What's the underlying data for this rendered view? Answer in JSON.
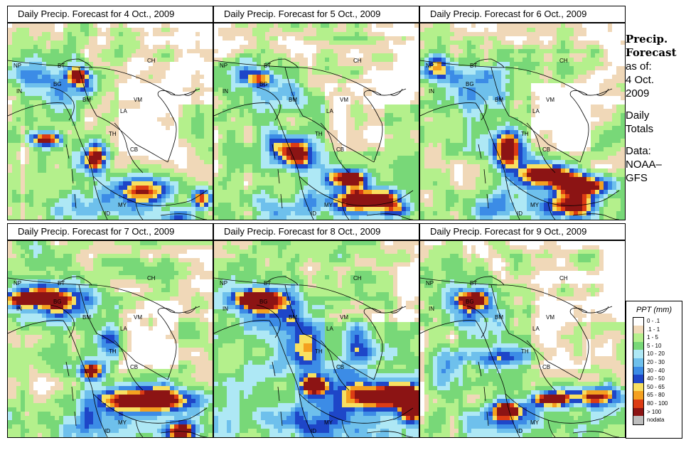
{
  "panels": [
    {
      "title": "Daily Precip. Forecast for  4 Oct., 2009",
      "scene": 0
    },
    {
      "title": "Daily Precip. Forecast for  5 Oct., 2009",
      "scene": 1
    },
    {
      "title": "Daily Precip. Forecast for  6 Oct., 2009",
      "scene": 2
    },
    {
      "title": "Daily Precip. Forecast for  7 Oct., 2009",
      "scene": 3
    },
    {
      "title": "Daily Precip. Forecast for  8 Oct., 2009",
      "scene": 4
    },
    {
      "title": "Daily Precip. Forecast for  9 Oct., 2009",
      "scene": 5
    }
  ],
  "map_labels": [
    "NP",
    "BT",
    "IN",
    "BG",
    "BM",
    "CH",
    "VM",
    "LA",
    "TH",
    "CB",
    "MY",
    "ID"
  ],
  "side": {
    "title1": "Precip.",
    "title2": "Forecast",
    "asof": "as of:",
    "date1": "4 Oct.",
    "date2": "2009",
    "daily1": "Daily",
    "daily2": "Totals",
    "data1": "Data:",
    "data2": "NOAA–",
    "data3": "GFS"
  },
  "legend": {
    "title": "PPT (mm)",
    "items": [
      {
        "label": "0 - .1",
        "color": "#ffffff"
      },
      {
        "label": ".1 - 1",
        "color": "#f0d8b8"
      },
      {
        "label": "1 - 5",
        "color": "#b4f08c"
      },
      {
        "label": "5 - 10",
        "color": "#78d878"
      },
      {
        "label": "10 - 20",
        "color": "#aee8f5"
      },
      {
        "label": "20 - 30",
        "color": "#6ec0ec"
      },
      {
        "label": "30 - 40",
        "color": "#3c8ce6"
      },
      {
        "label": "40 - 50",
        "color": "#1e46c8"
      },
      {
        "label": "50 - 65",
        "color": "#f8e060"
      },
      {
        "label": "65 - 80",
        "color": "#f4a020"
      },
      {
        "label": "80 - 100",
        "color": "#dc3c14"
      },
      {
        "label": "> 100",
        "color": "#8c1414"
      },
      {
        "label": "nodata",
        "color": "#bebebe"
      }
    ]
  }
}
